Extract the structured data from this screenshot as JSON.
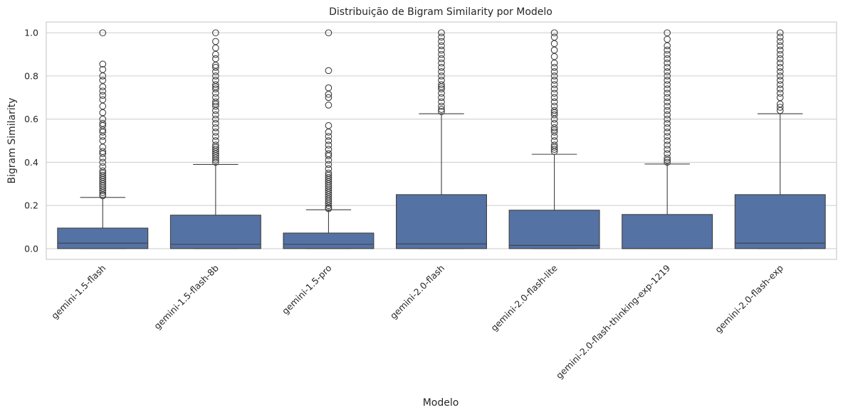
{
  "chart_data": {
    "type": "boxplot",
    "title": "Distribuição de Bigram Similarity por Modelo",
    "xlabel": "Modelo",
    "ylabel": "Bigram Similarity",
    "ylim": [
      -0.05,
      1.05
    ],
    "yticks": [
      "0.0",
      "0.2",
      "0.4",
      "0.6",
      "0.8",
      "1.0"
    ],
    "ytick_values": [
      0.0,
      0.2,
      0.4,
      0.6,
      0.8,
      1.0
    ],
    "grid": "horizontal",
    "box_color": "#5572a4",
    "line_color": "#404040",
    "categories": [
      "gemini-1.5-flash",
      "gemini-1.5-flash-8b",
      "gemini-1.5-pro",
      "gemini-2.0-flash",
      "gemini-2.0-flash-lite",
      "gemini-2.0-flash-thinking-exp-1219",
      "gemini-2.0-flash-exp"
    ],
    "boxes": [
      {
        "min": 0.0,
        "q1": 0.0,
        "median": 0.025,
        "q3": 0.095,
        "whisker_high": 0.237,
        "outliers": [
          0.245,
          0.25,
          0.26,
          0.27,
          0.28,
          0.29,
          0.3,
          0.31,
          0.32,
          0.33,
          0.34,
          0.35,
          0.36,
          0.38,
          0.4,
          0.42,
          0.44,
          0.45,
          0.47,
          0.5,
          0.52,
          0.54,
          0.55,
          0.57,
          0.58,
          0.6,
          0.63,
          0.66,
          0.69,
          0.71,
          0.73,
          0.75,
          0.78,
          0.8,
          0.83,
          0.855,
          1.0
        ]
      },
      {
        "min": 0.0,
        "q1": 0.0,
        "median": 0.02,
        "q3": 0.155,
        "whisker_high": 0.39,
        "outliers": [
          0.4,
          0.41,
          0.42,
          0.43,
          0.44,
          0.45,
          0.46,
          0.47,
          0.48,
          0.5,
          0.52,
          0.54,
          0.56,
          0.58,
          0.6,
          0.62,
          0.64,
          0.66,
          0.67,
          0.68,
          0.7,
          0.72,
          0.74,
          0.75,
          0.76,
          0.78,
          0.8,
          0.82,
          0.84,
          0.85,
          0.88,
          0.9,
          0.93,
          0.96,
          1.0
        ]
      },
      {
        "min": 0.0,
        "q1": 0.0,
        "median": 0.02,
        "q3": 0.072,
        "whisker_high": 0.18,
        "outliers": [
          0.185,
          0.19,
          0.2,
          0.21,
          0.22,
          0.23,
          0.24,
          0.25,
          0.26,
          0.27,
          0.28,
          0.29,
          0.3,
          0.31,
          0.32,
          0.33,
          0.34,
          0.35,
          0.37,
          0.39,
          0.41,
          0.43,
          0.44,
          0.46,
          0.48,
          0.5,
          0.52,
          0.54,
          0.57,
          0.665,
          0.7,
          0.715,
          0.745,
          0.825,
          1.0
        ]
      },
      {
        "min": 0.0,
        "q1": 0.0,
        "median": 0.022,
        "q3": 0.25,
        "whisker_high": 0.625,
        "outliers": [
          0.635,
          0.645,
          0.66,
          0.68,
          0.7,
          0.72,
          0.74,
          0.75,
          0.76,
          0.78,
          0.8,
          0.82,
          0.84,
          0.86,
          0.88,
          0.9,
          0.92,
          0.94,
          0.96,
          0.98,
          1.0
        ]
      },
      {
        "min": 0.0,
        "q1": 0.0,
        "median": 0.015,
        "q3": 0.178,
        "whisker_high": 0.437,
        "outliers": [
          0.45,
          0.46,
          0.47,
          0.48,
          0.5,
          0.52,
          0.54,
          0.55,
          0.56,
          0.58,
          0.6,
          0.62,
          0.63,
          0.64,
          0.66,
          0.68,
          0.7,
          0.72,
          0.74,
          0.76,
          0.78,
          0.8,
          0.82,
          0.84,
          0.86,
          0.89,
          0.92,
          0.95,
          0.98,
          1.0
        ]
      },
      {
        "min": 0.0,
        "q1": 0.0,
        "median": 0.0,
        "q3": 0.158,
        "whisker_high": 0.392,
        "outliers": [
          0.4,
          0.41,
          0.42,
          0.44,
          0.46,
          0.48,
          0.5,
          0.52,
          0.54,
          0.56,
          0.58,
          0.6,
          0.62,
          0.64,
          0.66,
          0.68,
          0.7,
          0.72,
          0.74,
          0.76,
          0.78,
          0.8,
          0.82,
          0.84,
          0.86,
          0.88,
          0.9,
          0.92,
          0.94,
          0.97,
          1.0
        ]
      },
      {
        "min": 0.0,
        "q1": 0.0,
        "median": 0.025,
        "q3": 0.25,
        "whisker_high": 0.625,
        "outliers": [
          0.64,
          0.655,
          0.67,
          0.7,
          0.72,
          0.74,
          0.76,
          0.78,
          0.8,
          0.82,
          0.84,
          0.86,
          0.88,
          0.9,
          0.92,
          0.94,
          0.96,
          0.98,
          1.0
        ]
      }
    ]
  }
}
